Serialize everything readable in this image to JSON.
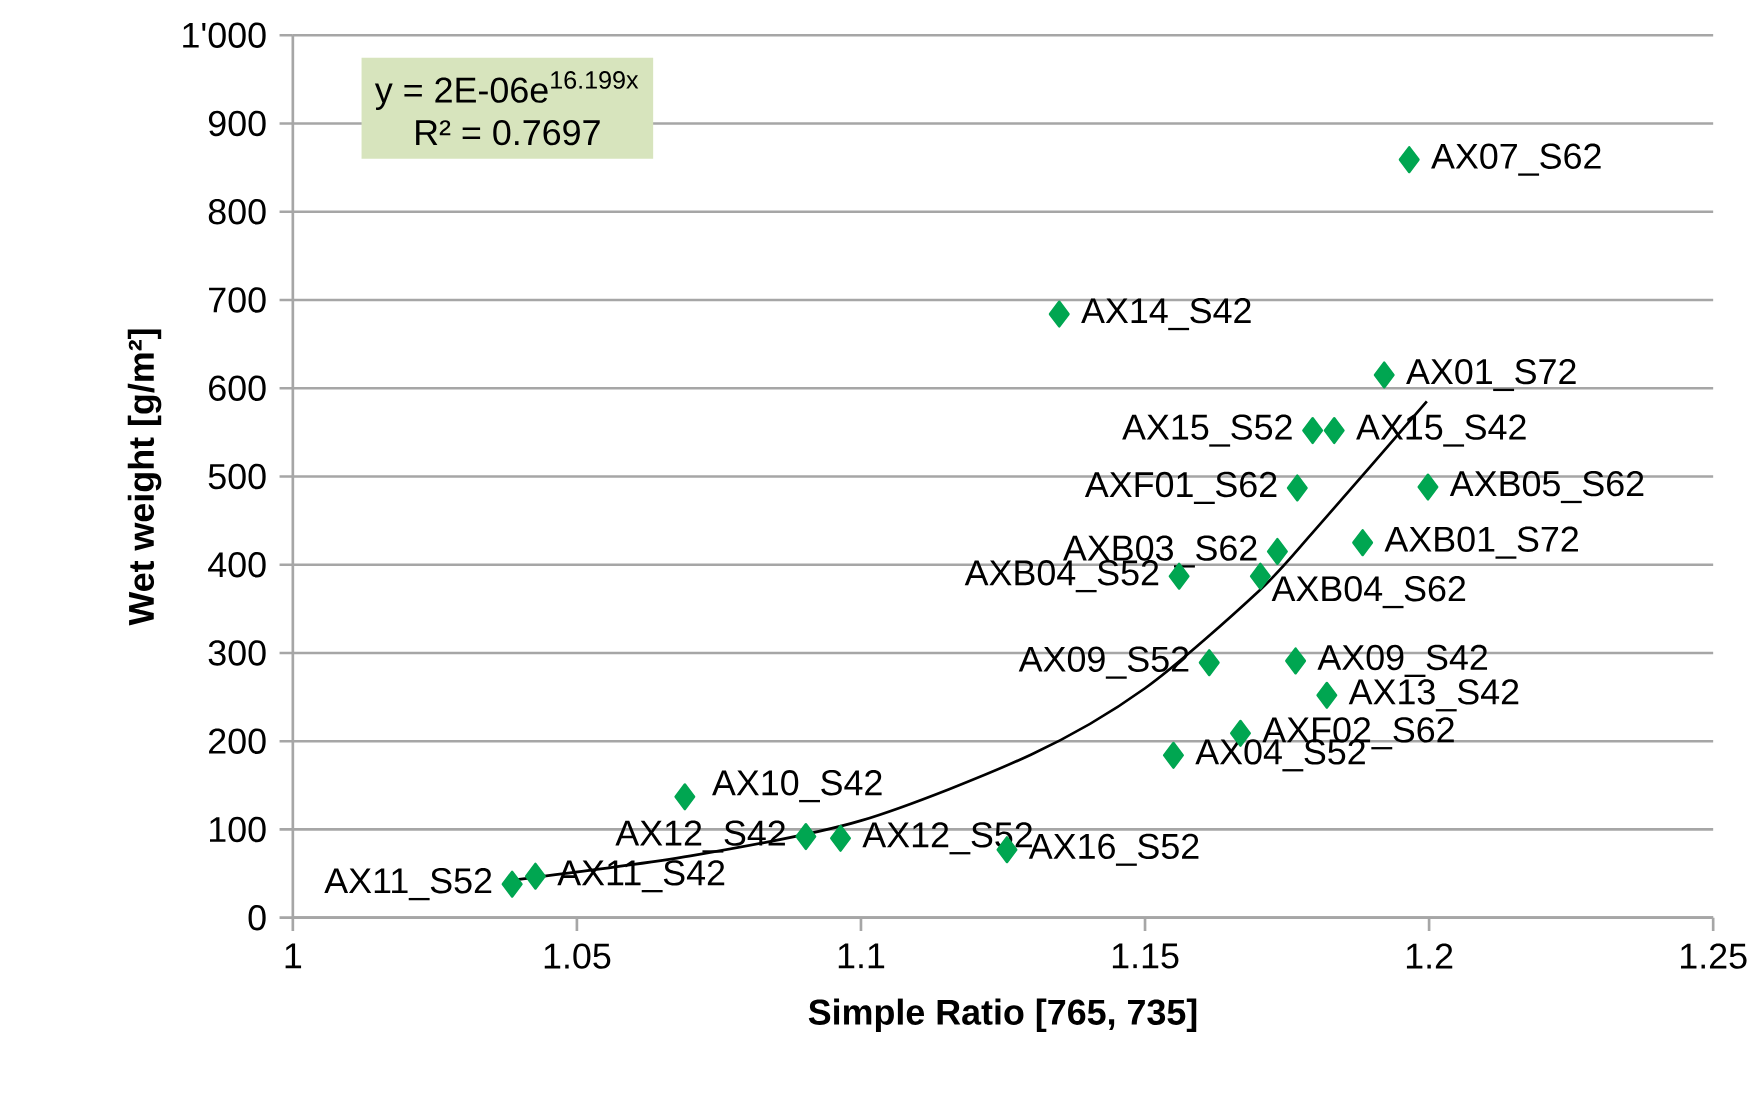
{
  "chart_data": {
    "type": "scatter",
    "xlabel": "Simple Ratio [765, 735]",
    "ylabel": "Wet weight [g/m²]",
    "xlim": [
      1,
      1.25
    ],
    "xticks": [
      1,
      1.05,
      1.1,
      1.15,
      1.2,
      1.25
    ],
    "ylim": [
      0,
      1000
    ],
    "yticks": [
      0,
      100,
      200,
      300,
      400,
      500,
      600,
      700,
      800,
      900,
      {
        "value": 1000,
        "label": "1'000"
      }
    ],
    "grid": "y",
    "marker": "diamond",
    "series": [
      {
        "color": "#00a651",
        "x": [
          1.0386,
          1.0427,
          1.069,
          1.0903,
          1.0964,
          1.1257,
          1.1965,
          1.1349,
          1.1921,
          1.1795,
          1.1833,
          1.1998,
          1.1768,
          1.1883,
          1.1733,
          1.156,
          1.1703,
          1.1613,
          1.1765,
          1.182,
          1.1668,
          1.155
        ],
        "values": [
          38,
          47,
          137,
          92,
          90,
          77,
          859,
          684,
          615,
          552,
          552,
          488,
          487,
          425,
          415,
          387,
          387,
          289,
          291,
          252,
          209,
          184
        ]
      },
      {
        "type": "line",
        "color": "#000000",
        "line_style": "solid",
        "marker": "none",
        "x": [
          1.038,
          1.07,
          1.1,
          1.13,
          1.15,
          1.17,
          1.18,
          1.1996
        ],
        "values": [
          42,
          70,
          110,
          185,
          260,
          370,
          440,
          585
        ]
      }
    ],
    "annotations": [
      "y = 2E-06e$^{16.199x}$",
      "R² = 0.7697",
      {
        "text": "AX11_S52",
        "x": 1.0386,
        "y": 38
      },
      {
        "text": "AX11_S42",
        "x": 1.0427,
        "y": 47
      },
      {
        "text": "AX10_S42",
        "x": 1.069,
        "y": 137
      },
      {
        "text": "AX12_S42",
        "x": 1.0903,
        "y": 92
      },
      {
        "text": "AX12_S52",
        "x": 1.0964,
        "y": 90
      },
      {
        "text": "AX16_S52",
        "x": 1.1257,
        "y": 77
      },
      {
        "text": "AX07_S62",
        "x": 1.1965,
        "y": 859
      },
      {
        "text": "AX14_S42",
        "x": 1.1349,
        "y": 684
      },
      {
        "text": "AX01_S72",
        "x": 1.1921,
        "y": 615
      },
      {
        "text": "AX15_S52",
        "x": 1.1795,
        "y": 552
      },
      {
        "text": "AX15_S42",
        "x": 1.1833,
        "y": 552
      },
      {
        "text": "AXB05_S62",
        "x": 1.1998,
        "y": 488
      },
      {
        "text": "AXF01_S62",
        "x": 1.1768,
        "y": 487
      },
      {
        "text": "AXB01_S72",
        "x": 1.1883,
        "y": 425
      },
      {
        "text": "AXB03_S62",
        "x": 1.1733,
        "y": 415
      },
      {
        "text": "AXB04_S52",
        "x": 1.156,
        "y": 387
      },
      {
        "text": "AXB04_S62",
        "x": 1.1703,
        "y": 387
      },
      {
        "text": "AX09_S52",
        "x": 1.1613,
        "y": 289
      },
      {
        "text": "AX09_S42",
        "x": 1.1765,
        "y": 291
      },
      {
        "text": "AX13_S42",
        "x": 1.182,
        "y": 252
      },
      {
        "text": "AXF02_S62",
        "x": 1.1668,
        "y": 209
      },
      {
        "text": "AX04_S52",
        "x": 1.155,
        "y": 184
      }
    ]
  }
}
